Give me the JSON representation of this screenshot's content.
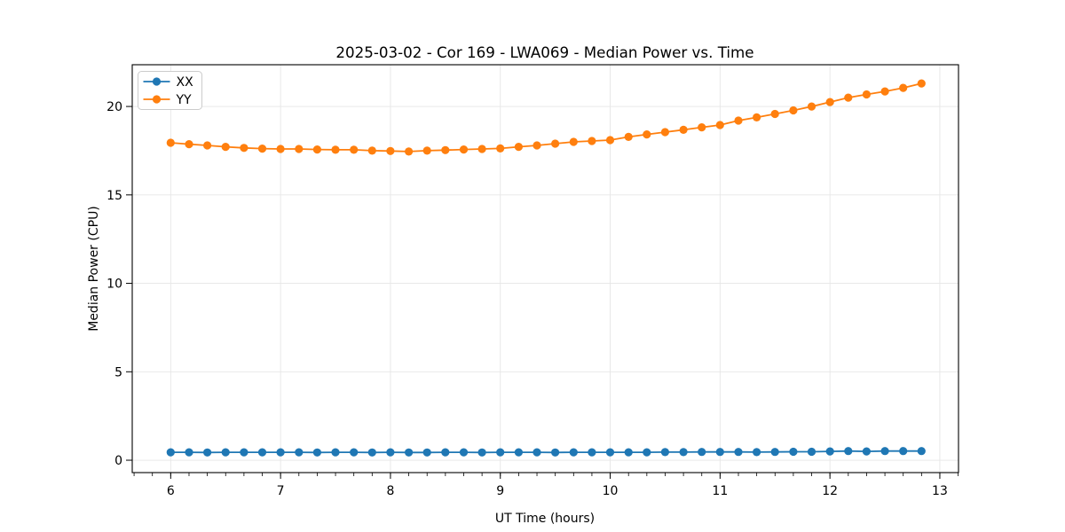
{
  "figure": {
    "title": "2025-03-02 - Cor 169 - LWA069 - Median Power vs. Time",
    "xlabel": "UT Time (hours)",
    "ylabel": "Median Power (CPU)",
    "background": "#ffffff"
  },
  "legend": {
    "position": "upper left",
    "entries": [
      {
        "label": "XX",
        "color": "#1f77b4"
      },
      {
        "label": "YY",
        "color": "#ff7f0e"
      }
    ]
  },
  "chart_data": {
    "type": "line",
    "title": "2025-03-02 - Cor 169 - LWA069 - Median Power vs. Time",
    "xlabel": "UT Time (hours)",
    "ylabel": "Median Power (CPU)",
    "xlim": [
      5.65,
      13.17
    ],
    "ylim": [
      -0.7,
      22.36
    ],
    "xticks": [
      6,
      7,
      8,
      9,
      10,
      11,
      12,
      13
    ],
    "yticks": [
      0,
      5,
      10,
      15,
      20
    ],
    "minor_xtick_step": 0.16667,
    "grid": true,
    "grid_color": "#e6e6e6",
    "marker": "o",
    "legend_position": "upper left",
    "x": [
      6.0,
      6.167,
      6.333,
      6.5,
      6.667,
      6.833,
      7.0,
      7.167,
      7.333,
      7.5,
      7.667,
      7.833,
      8.0,
      8.167,
      8.333,
      8.5,
      8.667,
      8.833,
      9.0,
      9.167,
      9.333,
      9.5,
      9.667,
      9.833,
      10.0,
      10.167,
      10.333,
      10.5,
      10.667,
      10.833,
      11.0,
      11.167,
      11.333,
      11.5,
      11.667,
      11.833,
      12.0,
      12.167,
      12.333,
      12.5,
      12.667,
      12.833
    ],
    "series": [
      {
        "name": "XX",
        "color": "#1f77b4",
        "values": [
          0.45,
          0.45,
          0.44,
          0.45,
          0.45,
          0.45,
          0.45,
          0.45,
          0.44,
          0.45,
          0.45,
          0.44,
          0.45,
          0.44,
          0.44,
          0.45,
          0.45,
          0.44,
          0.45,
          0.45,
          0.45,
          0.44,
          0.45,
          0.45,
          0.45,
          0.45,
          0.45,
          0.46,
          0.46,
          0.47,
          0.47,
          0.47,
          0.46,
          0.47,
          0.48,
          0.48,
          0.5,
          0.52,
          0.5,
          0.52,
          0.52,
          0.52
        ]
      },
      {
        "name": "YY",
        "color": "#ff7f0e",
        "values": [
          17.95,
          17.87,
          17.8,
          17.72,
          17.66,
          17.62,
          17.6,
          17.6,
          17.57,
          17.55,
          17.55,
          17.5,
          17.48,
          17.45,
          17.5,
          17.53,
          17.57,
          17.6,
          17.63,
          17.72,
          17.8,
          17.9,
          18.0,
          18.05,
          18.1,
          18.28,
          18.42,
          18.55,
          18.68,
          18.82,
          18.95,
          19.2,
          19.38,
          19.58,
          19.78,
          20.0,
          20.25,
          20.5,
          20.68,
          20.85,
          21.05,
          21.3
        ]
      }
    ]
  }
}
